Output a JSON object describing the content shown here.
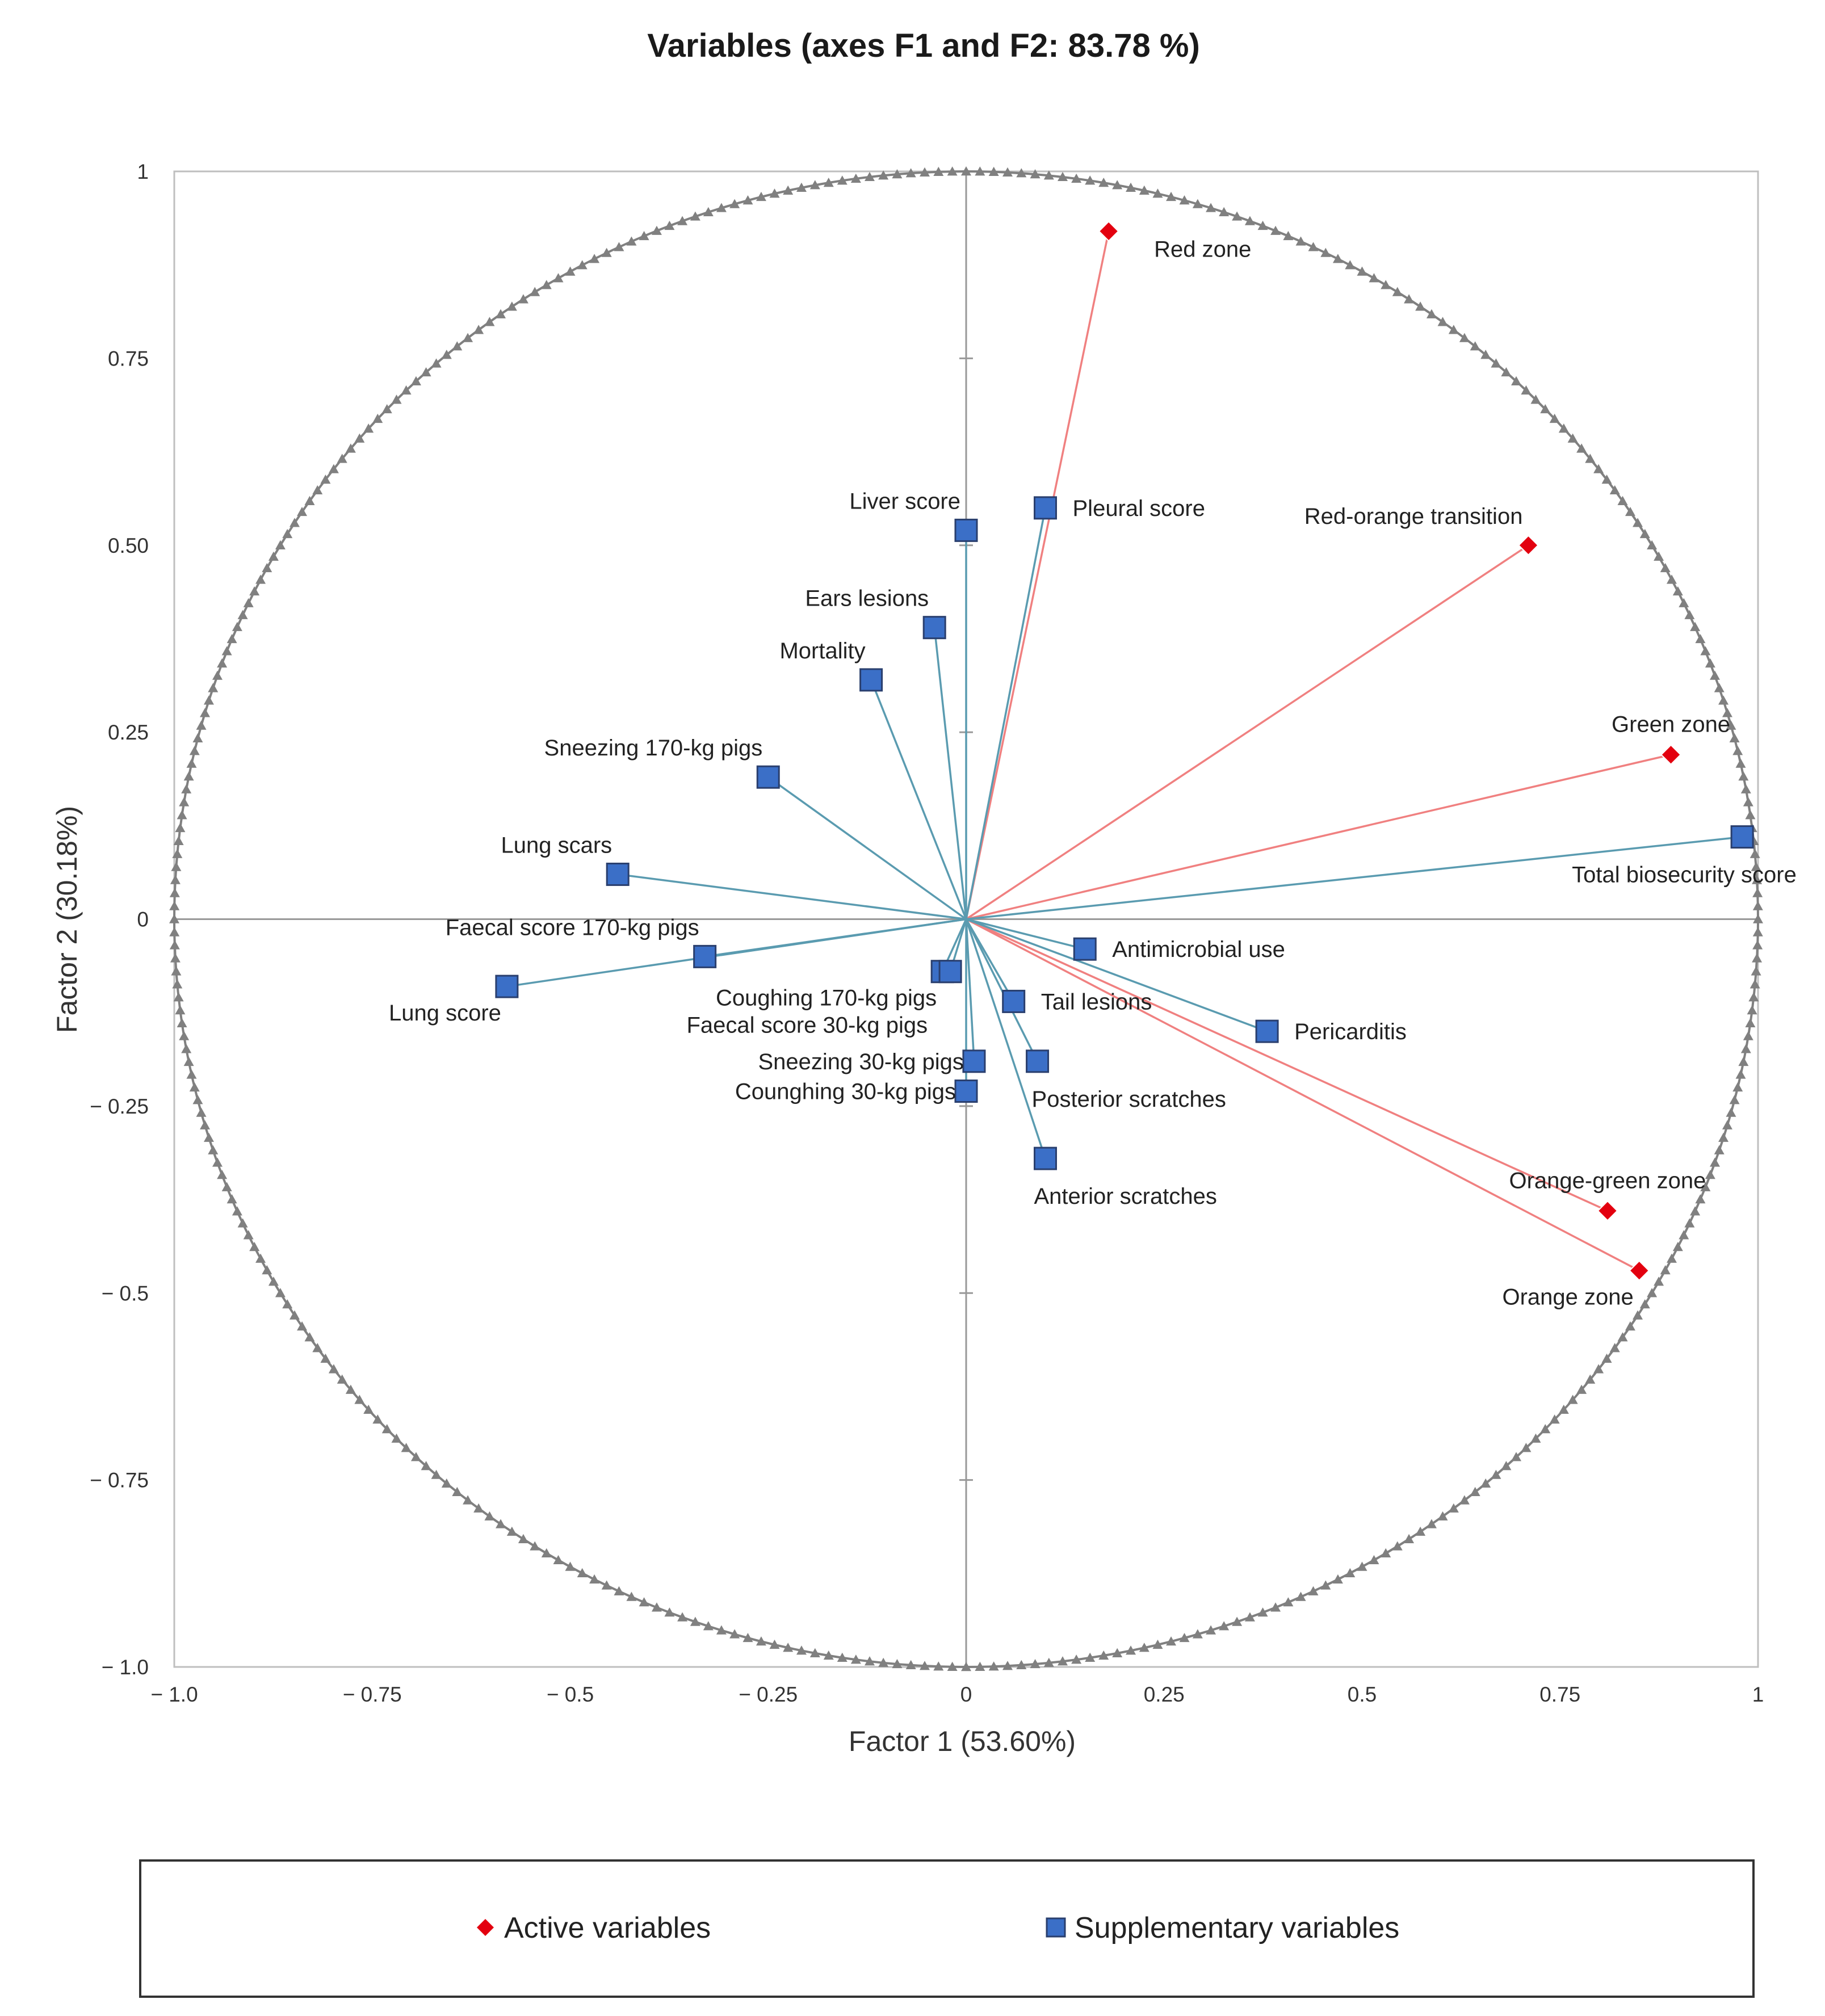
{
  "chart_data": {
    "type": "scatter",
    "subtype": "correlation-circle",
    "title": "Variables (axes F1 and F2:    83.78 %)",
    "xlabel": "Factor 1  (53.60%)",
    "ylabel": "Factor 2  (30.18%)",
    "xlim": [
      -1.0,
      1.0
    ],
    "ylim": [
      -1.0,
      1.0
    ],
    "x_ticks": [
      {
        "value": -1.0,
        "label": "− 1.0"
      },
      {
        "value": -0.75,
        "label": "− 0.75"
      },
      {
        "value": -0.5,
        "label": "− 0.5"
      },
      {
        "value": -0.25,
        "label": "− 0.25"
      },
      {
        "value": 0,
        "label": "0"
      },
      {
        "value": 0.25,
        "label": "0.25"
      },
      {
        "value": 0.5,
        "label": "0.5"
      },
      {
        "value": 0.75,
        "label": "0.75"
      },
      {
        "value": 1.0,
        "label": "1"
      }
    ],
    "y_ticks": [
      {
        "value": 1.0,
        "label": "1"
      },
      {
        "value": 0.75,
        "label": "0.75"
      },
      {
        "value": 0.5,
        "label": "0.50"
      },
      {
        "value": 0.25,
        "label": "0.25"
      },
      {
        "value": 0,
        "label": "0"
      },
      {
        "value": -0.25,
        "label": "− 0.25"
      },
      {
        "value": -0.5,
        "label": "− 0.5"
      },
      {
        "value": -0.75,
        "label": "− 0.75"
      },
      {
        "value": -1.0,
        "label": "− 1.0"
      }
    ],
    "colors": {
      "active": "#e3000f",
      "active_line": "#f08080",
      "supplementary": "#3b6fc7",
      "supplementary_line": "#5a9bb0",
      "circle": "#808080",
      "axis": "#999999"
    },
    "series": [
      {
        "name": "Active variables",
        "marker": "diamond",
        "points": [
          {
            "label": "Red zone",
            "x": 0.18,
            "y": 0.92,
            "label_pos": "right-below"
          },
          {
            "label": "Red-orange transition",
            "x": 0.71,
            "y": 0.5,
            "label_pos": "above-left"
          },
          {
            "label": "Green zone",
            "x": 0.89,
            "y": 0.22,
            "label_pos": "above"
          },
          {
            "label": "Orange-green zone",
            "x": 0.81,
            "y": -0.39,
            "label_pos": "above"
          },
          {
            "label": "Orange zone",
            "x": 0.85,
            "y": -0.47,
            "label_pos": "below-left"
          }
        ]
      },
      {
        "name": "Supplementary variables",
        "marker": "square",
        "points": [
          {
            "label": "Total biosecurity score",
            "x": 0.98,
            "y": 0.11,
            "label_pos": "below"
          },
          {
            "label": "Pleural score",
            "x": 0.1,
            "y": 0.55,
            "label_pos": "right"
          },
          {
            "label": "Liver score",
            "x": 0.0,
            "y": 0.52,
            "label_pos": "above-left"
          },
          {
            "label": "Ears lesions",
            "x": -0.04,
            "y": 0.39,
            "label_pos": "above-left"
          },
          {
            "label": "Mortality",
            "x": -0.12,
            "y": 0.32,
            "label_pos": "above-left"
          },
          {
            "label": "Sneezing 170-kg pigs",
            "x": -0.25,
            "y": 0.19,
            "label_pos": "above-left"
          },
          {
            "label": "Lung scars",
            "x": -0.44,
            "y": 0.06,
            "label_pos": "above-left"
          },
          {
            "label": "Faecal score 170-kg pigs",
            "x": -0.33,
            "y": -0.05,
            "label_pos": "above-left"
          },
          {
            "label": "Lung score",
            "x": -0.58,
            "y": -0.09,
            "label_pos": "below-left"
          },
          {
            "label": "Coughing 170-kg pigs",
            "x": -0.03,
            "y": -0.07,
            "label_pos": "below-left"
          },
          {
            "label": "Faecal score 30-kg pigs",
            "x": -0.02,
            "y": -0.07,
            "label_pos": "below-left2"
          },
          {
            "label": "Sneezing 30-kg pigs",
            "x": 0.01,
            "y": -0.19,
            "label_pos": "left"
          },
          {
            "label": "Counghing 30-kg pigs",
            "x": 0.0,
            "y": -0.23,
            "label_pos": "left"
          },
          {
            "label": "Antimicrobial use",
            "x": 0.15,
            "y": -0.04,
            "label_pos": "right"
          },
          {
            "label": "Tail lesions",
            "x": 0.06,
            "y": -0.11,
            "label_pos": "right"
          },
          {
            "label": "Pericarditis",
            "x": 0.38,
            "y": -0.15,
            "label_pos": "right"
          },
          {
            "label": "Posterior scratches",
            "x": 0.09,
            "y": -0.19,
            "label_pos": "below"
          },
          {
            "label": "Anterior scratches",
            "x": 0.1,
            "y": -0.32,
            "label_pos": "below"
          }
        ]
      }
    ],
    "legend": {
      "position": "bottom",
      "entries": [
        {
          "label": "Active variables",
          "marker": "diamond"
        },
        {
          "label": "Supplementary variables",
          "marker": "square"
        }
      ]
    }
  }
}
